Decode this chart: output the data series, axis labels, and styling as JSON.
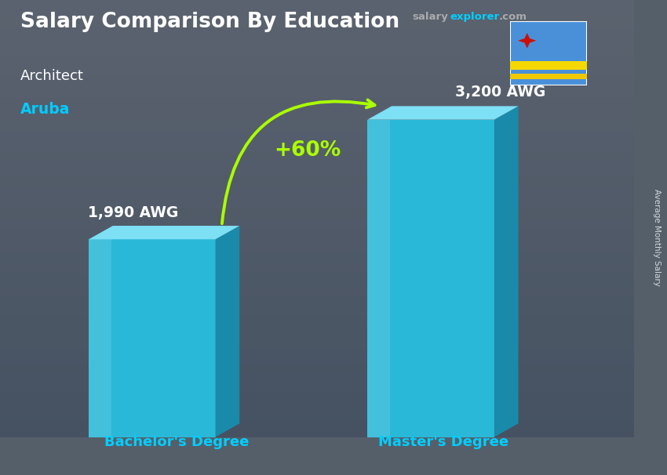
{
  "title_line1": "Salary Comparison By Education",
  "subtitle1": "Architect",
  "subtitle2": "Aruba",
  "categories": [
    "Bachelor's Degree",
    "Master's Degree"
  ],
  "values": [
    1990,
    3200
  ],
  "value_labels": [
    "1,990 AWG",
    "3,200 AWG"
  ],
  "pct_change": "+60%",
  "bar_face_color": "#29b8d8",
  "bar_side_color": "#1a8aaa",
  "bar_top_color": "#7de0f5",
  "bar_top_color2": "#5acce8",
  "ylabel_rotated": "Average Monthly Salary",
  "pct_color": "#aaff00",
  "category_label_color": "#00cfff",
  "title_color": "#ffffff",
  "subtitle1_color": "#ffffff",
  "subtitle2_color": "#00ccff",
  "value_label_color": "#ffffff",
  "salary_gray": "#999999",
  "salary_cyan": "#00cfff",
  "flag_bg": "#4a90d9",
  "flag_stripe1": "#f5d800",
  "flag_stripe2": "#e8c800",
  "flag_star": "#cc2200",
  "bg_top": "#6a7a8a",
  "bg_bottom": "#3a4a5a"
}
